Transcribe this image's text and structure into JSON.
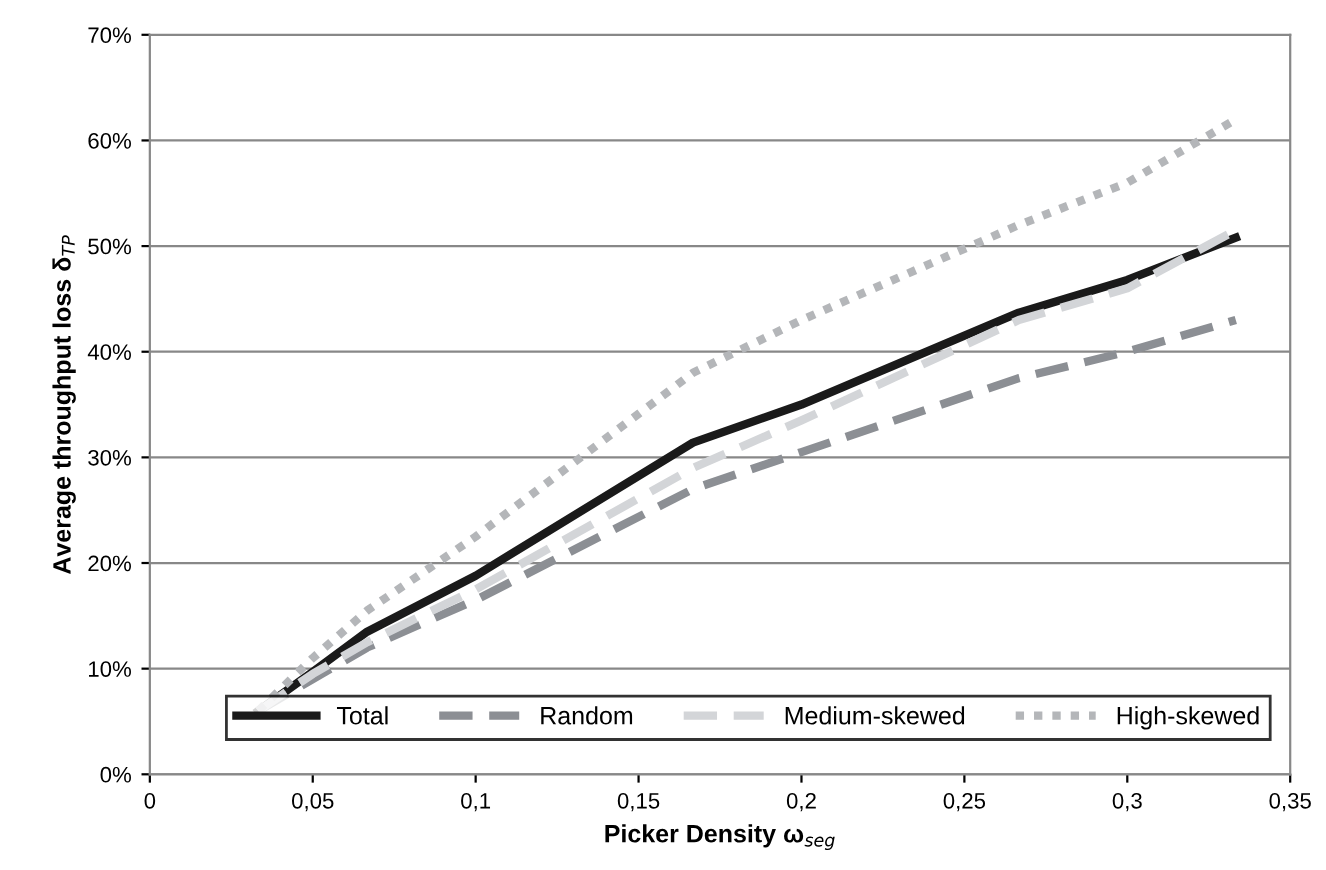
{
  "chart_data": {
    "type": "line",
    "xlabel": "Picker Density ω$_{seg}$",
    "ylabel": "Average throughput loss δ$_{TP}$",
    "x": [
      0.0333,
      0.05,
      0.0667,
      0.1,
      0.1667,
      0.2,
      0.2667,
      0.3,
      0.3333
    ],
    "series": [
      {
        "name": "Total",
        "color": "#1a1a1a",
        "line_style": "solid",
        "values": [
          6,
          9.7,
          13.5,
          18.8,
          31.4,
          35,
          43.7,
          46.8,
          50.8
        ]
      },
      {
        "name": "Random",
        "color": "#8c8f94",
        "line_style": "dashed",
        "values": [
          6,
          9,
          12,
          16.5,
          27,
          30.5,
          37.5,
          40,
          43
        ]
      },
      {
        "name": "Medium-skewed",
        "color": "#d3d5d8",
        "line_style": "dashed",
        "values": [
          6,
          9.5,
          12.5,
          17.5,
          29,
          33.5,
          43,
          46,
          51.5
        ]
      },
      {
        "name": "High-skewed",
        "color": "#b4b6b9",
        "line_style": "dotted",
        "values": [
          6,
          11,
          15.5,
          22.5,
          38,
          43,
          52,
          56,
          62
        ]
      }
    ],
    "xlim": [
      0,
      0.35
    ],
    "xticks": [
      0,
      {
        "value": 0.05,
        "label": "0,05"
      },
      {
        "value": 0.1,
        "label": "0,1"
      },
      {
        "value": 0.15,
        "label": "0,15"
      },
      {
        "value": 0.2,
        "label": "0,2"
      },
      {
        "value": 0.25,
        "label": "0,25"
      },
      {
        "value": 0.3,
        "label": "0,3"
      },
      {
        "value": 0.35,
        "label": "0,35"
      }
    ],
    "ylim": [
      0,
      70
    ],
    "yticks": [
      {
        "value": 0,
        "label": "0%"
      },
      {
        "value": 10,
        "label": "10%"
      },
      {
        "value": 20,
        "label": "20%"
      },
      {
        "value": 30,
        "label": "30%"
      },
      {
        "value": 40,
        "label": "40%"
      },
      {
        "value": 50,
        "label": "50%"
      },
      {
        "value": 60,
        "label": "60%"
      },
      {
        "value": 70,
        "label": "70%"
      }
    ],
    "grid": "y",
    "legend": "bottom right",
    "marker": "none"
  }
}
